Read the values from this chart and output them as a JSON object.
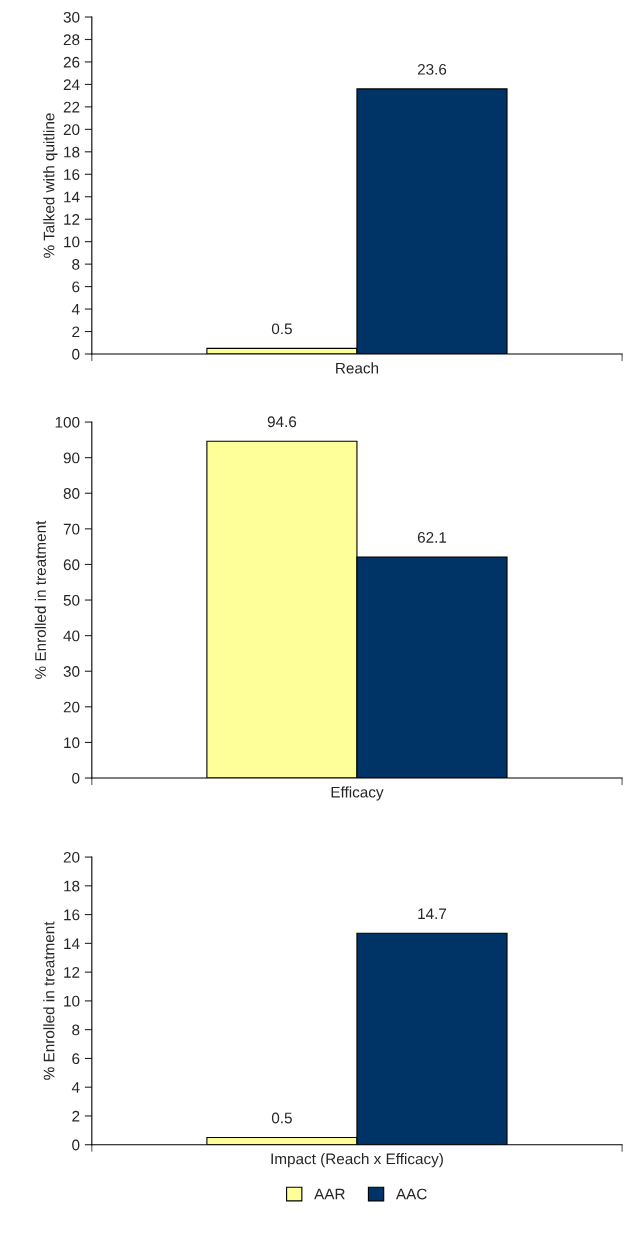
{
  "chart_data": [
    {
      "type": "bar",
      "categories": [
        "Reach"
      ],
      "ylabel": "% Talked with quitline",
      "ylim": [
        0,
        30
      ],
      "yticks": [
        0,
        2,
        4,
        6,
        8,
        10,
        12,
        14,
        16,
        18,
        20,
        22,
        24,
        26,
        28,
        30
      ],
      "data_labels": true,
      "grid": false,
      "series": [
        {
          "color": "#ffff99",
          "values": [
            0.5
          ]
        },
        {
          "color": "#003366",
          "values": [
            23.6
          ]
        }
      ]
    },
    {
      "type": "bar",
      "categories": [
        "Efficacy"
      ],
      "ylabel": "% Enrolled in treatment",
      "ylim": [
        0,
        100
      ],
      "yticks": [
        0,
        10,
        20,
        30,
        40,
        50,
        60,
        70,
        80,
        90,
        100
      ],
      "data_labels": true,
      "grid": false,
      "series": [
        {
          "color": "#ffff99",
          "values": [
            94.6
          ]
        },
        {
          "color": "#003366",
          "values": [
            62.1
          ]
        }
      ]
    },
    {
      "type": "bar",
      "categories": [
        "Impact (Reach x Efficacy)"
      ],
      "ylabel": "% Enrolled in treatment",
      "ylim": [
        0,
        20
      ],
      "yticks": [
        0,
        2,
        4,
        6,
        8,
        10,
        12,
        14,
        16,
        18,
        20
      ],
      "data_labels": true,
      "grid": false,
      "legend": "bottom",
      "series": [
        {
          "name": "AAR",
          "color": "#ffff99",
          "values": [
            0.5
          ]
        },
        {
          "name": "AAC",
          "color": "#003366",
          "values": [
            14.7
          ]
        }
      ]
    }
  ]
}
